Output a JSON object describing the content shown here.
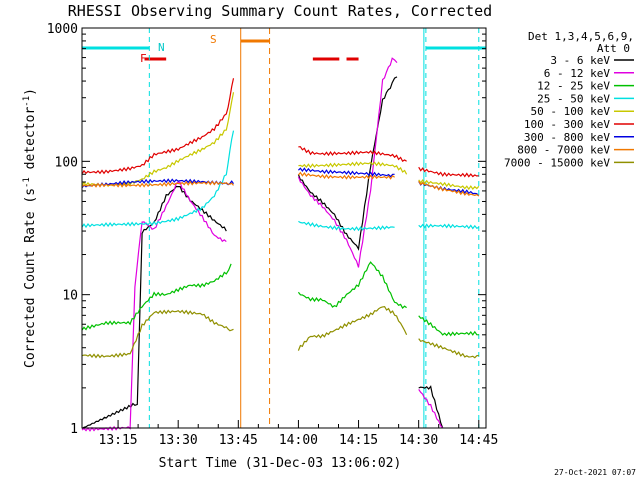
{
  "chart_data": {
    "type": "line",
    "title": "RHESSI Observing Summary Count Rates, Corrected",
    "xlabel": "Start Time (31-Dec-03 13:06:02)",
    "ylabel": "Corrected Count Rate (s",
    "ylabel_sup1": "-1",
    "ylabel_mid": " detector",
    "ylabel_sup2": "-1",
    "ylabel_end": ")",
    "yscale": "log",
    "ylim": [
      1,
      1000
    ],
    "xlim_minutes": [
      13.1,
      14.78
    ],
    "x_ticks": [
      {
        "label": "13:15",
        "t": 13.25
      },
      {
        "label": "13:30",
        "t": 13.5
      },
      {
        "label": "13:45",
        "t": 13.75
      },
      {
        "label": "14:00",
        "t": 14.0
      },
      {
        "label": "14:15",
        "t": 14.25
      },
      {
        "label": "14:30",
        "t": 14.5
      },
      {
        "label": "14:45",
        "t": 14.75
      }
    ],
    "y_ticks": [
      {
        "label": "1",
        "v": 1
      },
      {
        "label": "10",
        "v": 10
      },
      {
        "label": "100",
        "v": 100
      },
      {
        "label": "1000",
        "v": 1000
      }
    ],
    "legend_header": [
      "Det 1,3,4,5,6,9,",
      "Att 0"
    ],
    "legend_position": "top-right",
    "footer_date": "27-Oct-2021 07:07",
    "annotations": {
      "N": "N",
      "F": "F",
      "S": "S"
    },
    "colors": {
      "night_bar": "#00e0e0",
      "flare_bar": "#e00000",
      "saa_bar": "#f07800"
    },
    "flags": {
      "night": [
        [
          13.1,
          13.38
        ],
        [
          14.53,
          14.78
        ]
      ],
      "flare": [
        [
          13.36,
          13.45
        ],
        [
          14.06,
          14.17
        ],
        [
          14.2,
          14.25
        ]
      ],
      "saa": [
        [
          13.76,
          13.88
        ]
      ]
    },
    "gaps": [
      [
        13.73,
        14.0
      ],
      [
        14.49,
        14.5
      ]
    ],
    "series": [
      {
        "name": "3 - 6 keV",
        "color": "#000000",
        "x": [
          13.1,
          13.32,
          13.33,
          13.35,
          13.4,
          13.45,
          13.5,
          13.55,
          13.6,
          13.65,
          13.7,
          14.0,
          14.05,
          14.1,
          14.15,
          14.2,
          14.25,
          14.3,
          14.35,
          14.39,
          14.41,
          14.5,
          14.55,
          14.6
        ],
        "y": [
          1,
          1.5,
          1.5,
          30,
          35,
          55,
          65,
          50,
          42,
          35,
          30,
          80,
          60,
          50,
          40,
          28,
          22,
          90,
          280,
          380,
          430,
          2,
          2,
          1
        ]
      },
      {
        "name": "6 - 12 keV",
        "color": "#e000e0",
        "x": [
          13.1,
          13.3,
          13.32,
          13.35,
          13.4,
          13.45,
          13.5,
          13.55,
          13.6,
          13.65,
          13.7,
          14.0,
          14.05,
          14.1,
          14.15,
          14.2,
          14.25,
          14.3,
          14.35,
          14.39,
          14.41,
          14.5,
          14.55,
          14.6
        ],
        "y": [
          1,
          1,
          12,
          35,
          30,
          45,
          70,
          50,
          38,
          28,
          25,
          75,
          55,
          45,
          35,
          25,
          16,
          60,
          400,
          600,
          550,
          2,
          1.5,
          1
        ]
      },
      {
        "name": "12 - 25 keV",
        "color": "#00c000",
        "x": [
          13.1,
          13.2,
          13.3,
          13.35,
          13.4,
          13.45,
          13.5,
          13.55,
          13.6,
          13.65,
          13.7,
          13.72,
          14.0,
          14.05,
          14.1,
          14.15,
          14.2,
          14.25,
          14.3,
          14.35,
          14.4,
          14.45,
          14.5,
          14.55,
          14.6,
          14.65,
          14.7,
          14.75
        ],
        "y": [
          5.5,
          6,
          6,
          8,
          10,
          10,
          11,
          12,
          12,
          13,
          15,
          17,
          10,
          9,
          9,
          8,
          10,
          12,
          18,
          14,
          9,
          8,
          7,
          6,
          5,
          5,
          5,
          5
        ]
      },
      {
        "name": "25 - 50 keV",
        "color": "#00e0e0",
        "x": [
          13.1,
          13.2,
          13.3,
          13.4,
          13.5,
          13.6,
          13.65,
          13.7,
          13.73,
          14.0,
          14.1,
          14.2,
          14.3,
          14.4,
          14.5,
          14.6,
          14.7,
          14.75
        ],
        "y": [
          32,
          33,
          34,
          35,
          38,
          45,
          55,
          80,
          170,
          35,
          33,
          32,
          32,
          32,
          32,
          32,
          32,
          32
        ]
      },
      {
        "name": "50 - 100 keV",
        "color": "#c8c800",
        "x": [
          13.1,
          13.2,
          13.3,
          13.35,
          13.4,
          13.45,
          13.5,
          13.55,
          13.6,
          13.65,
          13.7,
          13.73,
          14.0,
          14.1,
          14.2,
          14.3,
          14.4,
          14.45,
          14.5,
          14.6,
          14.7,
          14.75
        ],
        "y": [
          68,
          68,
          70,
          75,
          85,
          90,
          100,
          110,
          120,
          135,
          170,
          330,
          95,
          95,
          95,
          95,
          90,
          80,
          70,
          68,
          65,
          65
        ]
      },
      {
        "name": "100 - 300 keV",
        "color": "#e00000",
        "x": [
          13.1,
          13.2,
          13.3,
          13.35,
          13.4,
          13.45,
          13.5,
          13.55,
          13.6,
          13.65,
          13.7,
          13.73,
          14.0,
          14.05,
          14.1,
          14.2,
          14.3,
          14.4,
          14.45,
          14.5,
          14.6,
          14.7,
          14.75
        ],
        "y": [
          85,
          85,
          88,
          92,
          110,
          115,
          120,
          135,
          150,
          175,
          230,
          420,
          130,
          115,
          112,
          112,
          115,
          110,
          100,
          90,
          82,
          80,
          78
        ]
      },
      {
        "name": "300 - 800 keV",
        "color": "#0000e0",
        "x": [
          13.1,
          13.2,
          13.3,
          13.4,
          13.5,
          13.6,
          13.7,
          13.73,
          14.0,
          14.1,
          14.2,
          14.3,
          14.4,
          14.5,
          14.6,
          14.7,
          14.75
        ],
        "y": [
          65,
          66,
          68,
          70,
          72,
          72,
          70,
          68,
          85,
          82,
          82,
          82,
          80,
          70,
          62,
          58,
          55
        ]
      },
      {
        "name": "800 - 7000 keV",
        "color": "#f07800",
        "x": [
          13.1,
          13.2,
          13.3,
          13.4,
          13.5,
          13.6,
          13.7,
          13.73,
          14.0,
          14.1,
          14.2,
          14.3,
          14.4,
          14.5,
          14.6,
          14.7,
          14.75
        ],
        "y": [
          64,
          65,
          66,
          68,
          70,
          70,
          68,
          66,
          80,
          78,
          78,
          78,
          76,
          68,
          60,
          56,
          55
        ]
      },
      {
        "name": "7000 - 15000 keV",
        "color": "#909000",
        "x": [
          13.1,
          13.2,
          13.3,
          13.35,
          13.4,
          13.5,
          13.6,
          13.65,
          13.7,
          13.73,
          14.0,
          14.05,
          14.1,
          14.2,
          14.3,
          14.35,
          14.4,
          14.45,
          14.5,
          14.6,
          14.7,
          14.75
        ],
        "y": [
          3.5,
          3.5,
          3.7,
          6,
          7.5,
          7.5,
          7,
          6,
          5.5,
          5.5,
          4,
          5,
          5,
          6,
          7,
          8,
          7,
          5,
          4.5,
          4,
          3.5,
          3.5
        ]
      }
    ]
  }
}
